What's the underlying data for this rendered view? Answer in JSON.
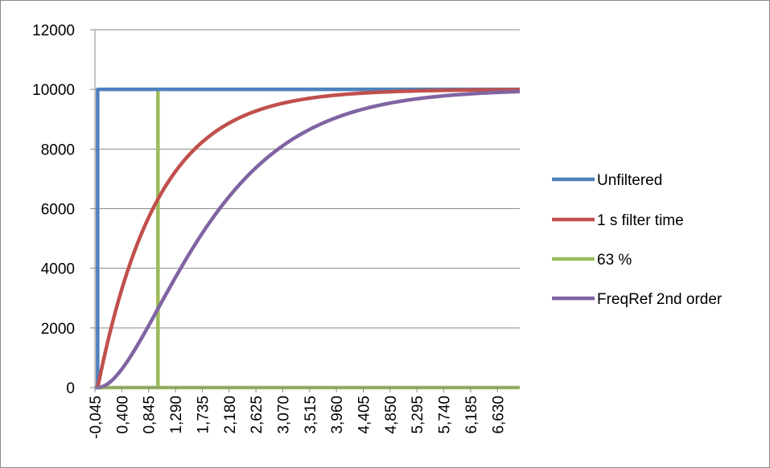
{
  "chart_data": {
    "type": "line",
    "title": "",
    "xlabel": "",
    "ylabel": "",
    "ylim": [
      0,
      12000
    ],
    "yticks": [
      0,
      2000,
      4000,
      6000,
      8000,
      10000,
      12000
    ],
    "xlim": [
      -0.045,
      7.0
    ],
    "x_tick_labels": [
      "-0,045",
      "0,400",
      "0,845",
      "1,290",
      "1,735",
      "2,180",
      "2,625",
      "3,070",
      "3,515",
      "3,960",
      "4,405",
      "4,850",
      "5,295",
      "5,740",
      "6,185",
      "6,630"
    ],
    "x_tick_values": [
      -0.045,
      0.4,
      0.845,
      1.29,
      1.735,
      2.18,
      2.625,
      3.07,
      3.515,
      3.96,
      4.405,
      4.85,
      5.295,
      5.74,
      6.185,
      6.63
    ],
    "grid": {
      "horizontal": true,
      "vertical": false
    },
    "legend": {
      "position": "right"
    },
    "series": [
      {
        "name": "Unfiltered",
        "color": "#4f81bd",
        "x": [
          -0.045,
          0.0,
          0.0,
          7.0
        ],
        "y": [
          0,
          0,
          10000,
          10000
        ]
      },
      {
        "name": "1 s filter time",
        "color": "#c0504d",
        "x": [
          0.0,
          0.1,
          0.2,
          0.3,
          0.5,
          0.7,
          1.0,
          1.29,
          1.5,
          1.735,
          2.0,
          2.18,
          2.5,
          3.0,
          3.5,
          4.0,
          4.5,
          5.0,
          5.5,
          6.0,
          6.5,
          7.0
        ],
        "y": [
          0,
          952,
          1813,
          2592,
          3935,
          5034,
          6321,
          7247,
          7769,
          8236,
          8647,
          8869,
          9179,
          9502,
          9698,
          9817,
          9889,
          9933,
          9959,
          9975,
          9985,
          9991
        ]
      },
      {
        "name": "63 %",
        "color": "#9bbb59",
        "x": [
          -0.045,
          1.0,
          1.0,
          1.0,
          7.0
        ],
        "y": [
          0,
          0,
          10000,
          0,
          0
        ]
      },
      {
        "name": "FreqRef 2nd order",
        "color": "#8064a2",
        "x": [
          0.0,
          0.25,
          0.5,
          0.75,
          1.0,
          1.29,
          1.5,
          1.735,
          2.0,
          2.18,
          2.5,
          2.75,
          3.07,
          3.5,
          4.0,
          4.5,
          5.0,
          5.5,
          6.0,
          6.5,
          7.0
        ],
        "y": [
          0,
          265,
          902,
          1734,
          2642,
          3692,
          4422,
          5177,
          5940,
          6408,
          7127,
          7603,
          8130,
          8641,
          9084,
          9389,
          9596,
          9734,
          9826,
          9887,
          9927
        ]
      }
    ]
  }
}
